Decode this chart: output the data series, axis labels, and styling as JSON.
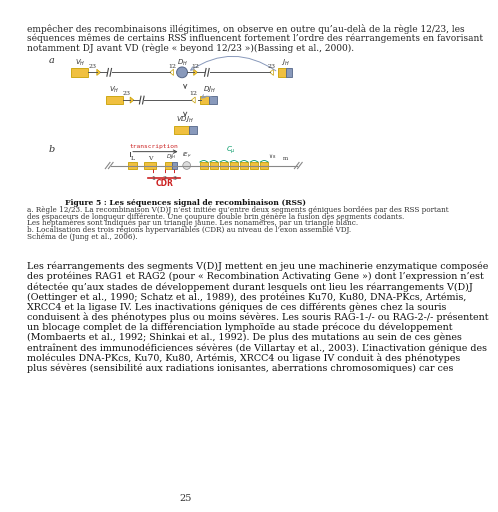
{
  "bg_color": "#ffffff",
  "top_text_lines": [
    "empêcher des recombinaisons illégitimes, on observe en outre qu’au-delà de la règle 12/23, les",
    "séquences mêmes de certains RSS influencent fortement l’ordre des réarrangements en favorisant",
    "notamment DJ avant VD (règle « beyond 12/23 »)(Bassing et al., 2000)."
  ],
  "figure_caption_bold": "Figure 5 : Les séquences signal de recombinaison (RSS)",
  "figure_caption_lines": [
    "a. Règle 12/23. La recombinaison V(D)J n’est initiée qu’entre deux segments géniques bordées par des RSS portant",
    "des espaceurs de longueur différente. Une coupure double brin génère la fusion des segments codants.",
    "Les heptamères sont indiqués par un triangle jaune. Les nonamères, par un triangle blanc.",
    "b. Localisation des trois régions hypervariables (CDR) au niveau de l’exon assemblé VDJ.",
    "Schéma de (Jung et al., 2006)."
  ],
  "body_text_lines": [
    "Les réarrangements des segments V(D)J mettent en jeu une machinerie enzymatique composée",
    "des protéines RAG1 et RAG2 (pour « Recombination Activating Gene ») dont l’expression n’est",
    "détectée qu’aux stades de développement durant lesquels ont lieu les réarrangements V(D)J",
    "(Oettinger et al., 1990; Schatz et al., 1989), des protéines Ku70, Ku80, DNA-PKcs, Artémis,",
    "XRCC4 et la ligase IV. Les inactivations géniques de ces différents gènes chez la souris",
    "conduisent à des phénotypes plus ou moins sévères. Les souris RAG-1-/- ou RAG-2-/- présentent",
    "un blocage complet de la différenciation lymphoïde au stade précoce du développement",
    "(Mombaerts et al., 1992; Shinkai et al., 1992). De plus des mutations au sein de ces gènes",
    "entraînent des immunodéficiences sévères (de Villartay et al., 2003). L’inactivation génique des",
    "molécules DNA-PKcs, Ku70, Ku80, Artémis, XRCC4 ou ligase IV conduit à des phénotypes",
    "plus sévères (sensibilité aux radiations ionisantes, aberrations chromosomiques) car ces"
  ],
  "page_number": "25",
  "gold": "#f0c040",
  "gold_edge": "#c8a000",
  "blue_grey": "#8899bb",
  "blue_grey_edge": "#556688"
}
